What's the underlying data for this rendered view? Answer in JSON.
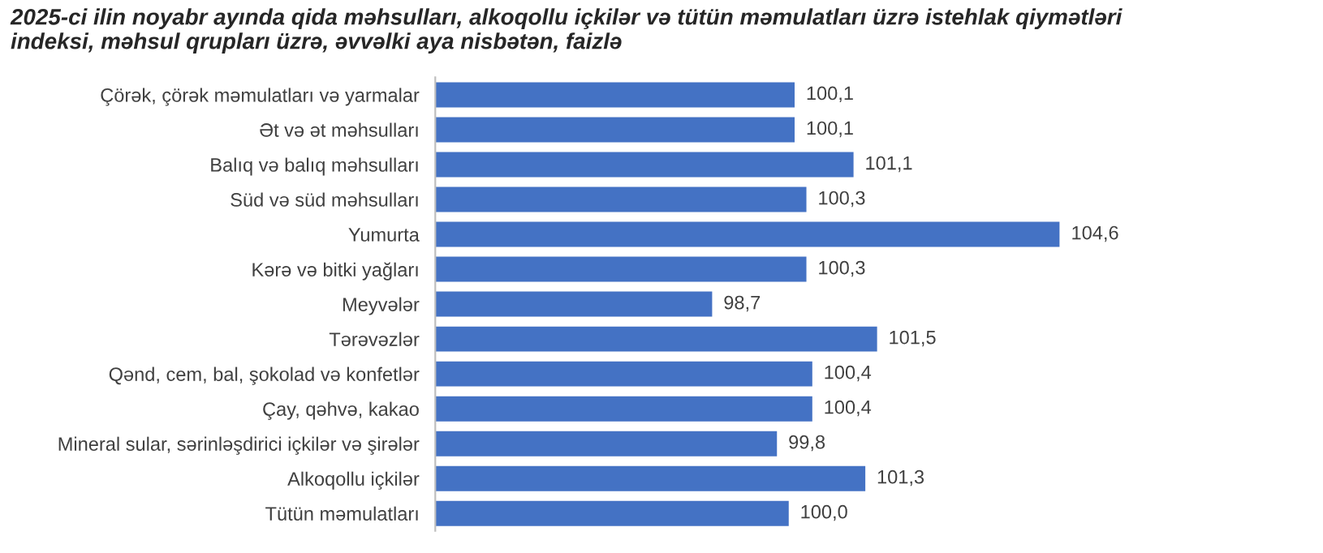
{
  "chart_data": {
    "type": "bar",
    "orientation": "horizontal",
    "title": "2025-ci ilin noyabr ayında qida məhsulları, alkoqollu içkilər və tütün məmulatları üzrə istehlak qiymətləri\nindeksi, məhsul qrupları üzrə, əvvəlki aya nisbətən, faizlə",
    "categories": [
      "Çörək, çörək məmulatları və yarmalar",
      "Ət və ət məhsulları",
      "Balıq və balıq məhsulları",
      "Süd və süd məhsulları",
      "Yumurta",
      "Kərə və bitki yağları",
      "Meyvələr",
      "Tərəvəzlər",
      "Qənd, cem, bal, şokolad və konfetlər",
      "Çay, qəhvə, kakao",
      "Mineral sular, sərinləşdirici içkilər və şirələr",
      "Alkoqollu içkilər",
      "Tütün məmulatları"
    ],
    "values": [
      100.1,
      100.1,
      101.1,
      100.3,
      104.6,
      100.3,
      98.7,
      101.5,
      100.4,
      100.4,
      99.8,
      101.3,
      100.0
    ],
    "value_labels": [
      "100,1",
      "100,1",
      "101,1",
      "100,3",
      "104,6",
      "100,3",
      "98,7",
      "101,5",
      "100,4",
      "100,4",
      "99,8",
      "101,3",
      "100,0"
    ],
    "color": "#4472c4",
    "xlim": [
      94,
      104.6
    ],
    "tick_labels": "y",
    "grid": false,
    "legend": false
  }
}
